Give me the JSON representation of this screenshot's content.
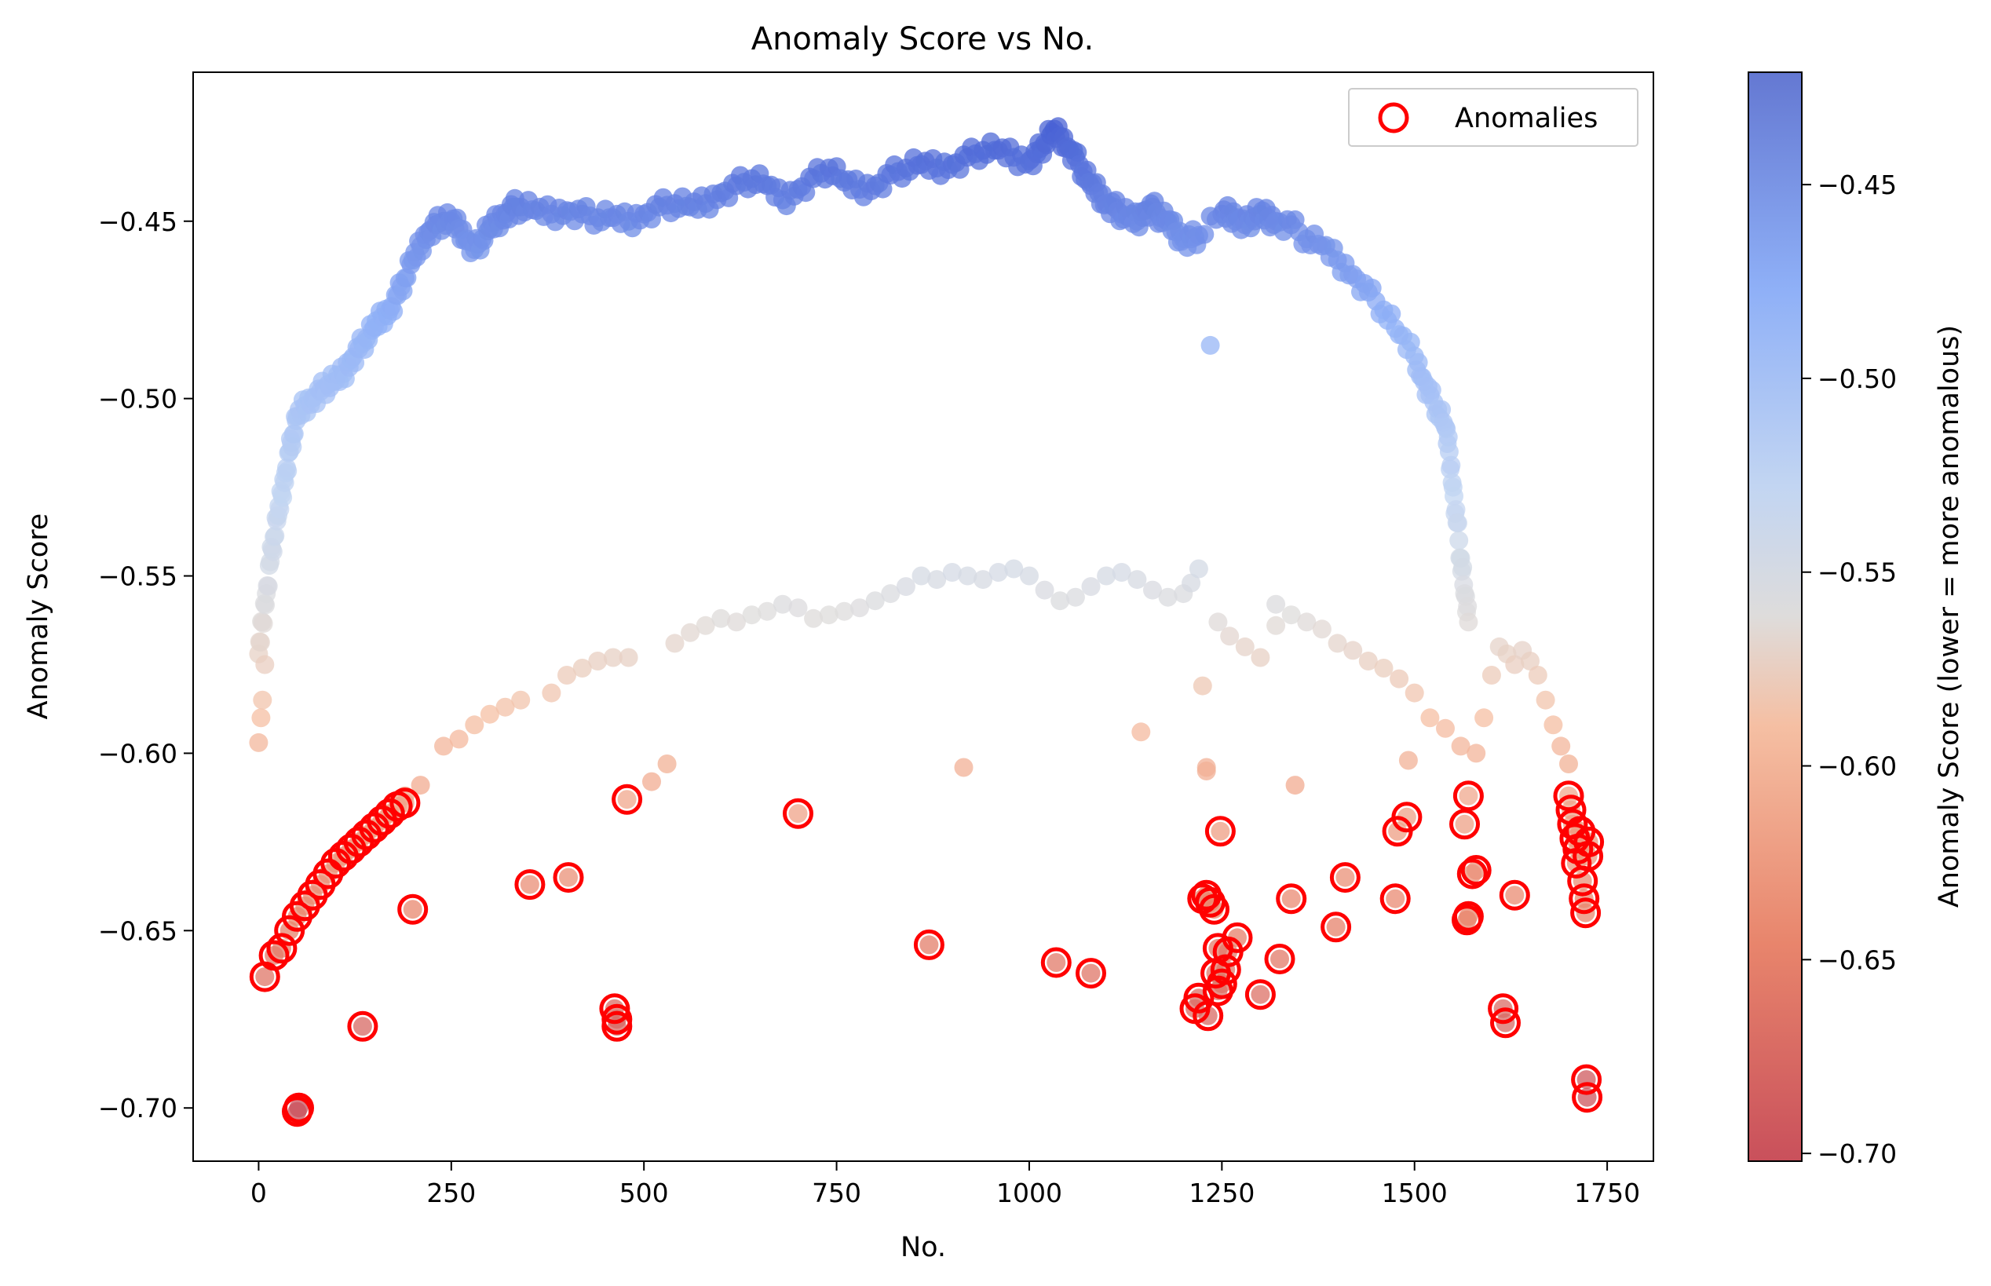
{
  "chart_data": {
    "type": "scatter",
    "title": "Anomaly Score vs No.",
    "xlabel": "No.",
    "ylabel": "Anomaly Score",
    "xlim": [
      -85,
      1810
    ],
    "ylim": [
      -0.715,
      -0.408
    ],
    "x_ticks": [
      0,
      250,
      500,
      750,
      1000,
      1250,
      1500,
      1750
    ],
    "y_ticks": [
      -0.45,
      -0.5,
      -0.55,
      -0.6,
      -0.65,
      -0.7
    ],
    "x_tick_labels": [
      "0",
      "250",
      "500",
      "750",
      "1000",
      "1250",
      "1500",
      "1750"
    ],
    "y_tick_labels": [
      "−0.45",
      "−0.50",
      "−0.55",
      "−0.60",
      "−0.65",
      "−0.70"
    ],
    "colormap": "coolwarm_r",
    "colorbar": {
      "label": "Anomaly Score (lower = more anomalous)",
      "range": [
        -0.702,
        -0.421
      ],
      "ticks": [
        -0.45,
        -0.5,
        -0.55,
        -0.6,
        -0.65,
        -0.7
      ],
      "tick_labels": [
        "−0.45",
        "−0.50",
        "−0.55",
        "−0.60",
        "−0.65",
        "−0.70"
      ]
    },
    "legend": {
      "entries": [
        "Anomalies"
      ],
      "placement": "top-right",
      "marker_color": "#ff0000"
    },
    "grid": false,
    "upper_band": [
      [
        0,
        -0.572
      ],
      [
        5,
        -0.563
      ],
      [
        10,
        -0.555
      ],
      [
        15,
        -0.546
      ],
      [
        20,
        -0.539
      ],
      [
        25,
        -0.533
      ],
      [
        30,
        -0.527
      ],
      [
        35,
        -0.521
      ],
      [
        40,
        -0.515
      ],
      [
        45,
        -0.51
      ],
      [
        50,
        -0.505
      ],
      [
        60,
        -0.502
      ],
      [
        70,
        -0.5
      ],
      [
        80,
        -0.498
      ],
      [
        90,
        -0.496
      ],
      [
        100,
        -0.495
      ],
      [
        110,
        -0.493
      ],
      [
        120,
        -0.489
      ],
      [
        130,
        -0.486
      ],
      [
        140,
        -0.483
      ],
      [
        150,
        -0.48
      ],
      [
        160,
        -0.477
      ],
      [
        170,
        -0.475
      ],
      [
        180,
        -0.471
      ],
      [
        190,
        -0.466
      ],
      [
        200,
        -0.461
      ],
      [
        210,
        -0.457
      ],
      [
        220,
        -0.453
      ],
      [
        230,
        -0.451
      ],
      [
        240,
        -0.45
      ],
      [
        250,
        -0.45
      ],
      [
        260,
        -0.452
      ],
      [
        270,
        -0.455
      ],
      [
        280,
        -0.458
      ],
      [
        290,
        -0.455
      ],
      [
        300,
        -0.452
      ],
      [
        310,
        -0.45
      ],
      [
        320,
        -0.448
      ],
      [
        330,
        -0.446
      ],
      [
        340,
        -0.446
      ],
      [
        360,
        -0.447
      ],
      [
        380,
        -0.448
      ],
      [
        400,
        -0.447
      ],
      [
        420,
        -0.448
      ],
      [
        440,
        -0.449
      ],
      [
        460,
        -0.449
      ],
      [
        480,
        -0.45
      ],
      [
        500,
        -0.448
      ],
      [
        520,
        -0.446
      ],
      [
        540,
        -0.445
      ],
      [
        560,
        -0.446
      ],
      [
        580,
        -0.445
      ],
      [
        600,
        -0.442
      ],
      [
        620,
        -0.44
      ],
      [
        640,
        -0.438
      ],
      [
        660,
        -0.44
      ],
      [
        680,
        -0.444
      ],
      [
        700,
        -0.441
      ],
      [
        720,
        -0.438
      ],
      [
        740,
        -0.435
      ],
      [
        760,
        -0.439
      ],
      [
        780,
        -0.441
      ],
      [
        800,
        -0.44
      ],
      [
        820,
        -0.437
      ],
      [
        840,
        -0.435
      ],
      [
        860,
        -0.434
      ],
      [
        880,
        -0.435
      ],
      [
        900,
        -0.434
      ],
      [
        920,
        -0.432
      ],
      [
        940,
        -0.43
      ],
      [
        960,
        -0.43
      ],
      [
        980,
        -0.432
      ],
      [
        1000,
        -0.433
      ],
      [
        1010,
        -0.431
      ],
      [
        1020,
        -0.428
      ],
      [
        1030,
        -0.425
      ],
      [
        1040,
        -0.426
      ],
      [
        1050,
        -0.429
      ],
      [
        1060,
        -0.432
      ],
      [
        1070,
        -0.436
      ],
      [
        1080,
        -0.44
      ],
      [
        1090,
        -0.442
      ],
      [
        1100,
        -0.445
      ],
      [
        1110,
        -0.446
      ],
      [
        1120,
        -0.448
      ],
      [
        1130,
        -0.449
      ],
      [
        1140,
        -0.45
      ],
      [
        1150,
        -0.447
      ],
      [
        1160,
        -0.446
      ],
      [
        1170,
        -0.449
      ],
      [
        1180,
        -0.45
      ],
      [
        1190,
        -0.453
      ],
      [
        1200,
        -0.455
      ],
      [
        1210,
        -0.455
      ],
      [
        1220,
        -0.454
      ],
      [
        1250,
        -0.448
      ],
      [
        1260,
        -0.448
      ],
      [
        1270,
        -0.449
      ],
      [
        1280,
        -0.451
      ],
      [
        1290,
        -0.449
      ],
      [
        1300,
        -0.448
      ],
      [
        1310,
        -0.449
      ],
      [
        1320,
        -0.45
      ],
      [
        1340,
        -0.451
      ],
      [
        1360,
        -0.455
      ],
      [
        1380,
        -0.457
      ],
      [
        1400,
        -0.461
      ],
      [
        1420,
        -0.465
      ],
      [
        1440,
        -0.47
      ],
      [
        1460,
        -0.475
      ],
      [
        1480,
        -0.482
      ],
      [
        1500,
        -0.488
      ],
      [
        1510,
        -0.494
      ],
      [
        1520,
        -0.499
      ],
      [
        1530,
        -0.503
      ],
      [
        1540,
        -0.508
      ],
      [
        1545,
        -0.515
      ],
      [
        1550,
        -0.525
      ],
      [
        1555,
        -0.535
      ],
      [
        1560,
        -0.545
      ],
      [
        1565,
        -0.555
      ],
      [
        1570,
        -0.563
      ]
    ],
    "middle_band": [
      [
        240,
        -0.598
      ],
      [
        260,
        -0.596
      ],
      [
        280,
        -0.592
      ],
      [
        300,
        -0.589
      ],
      [
        320,
        -0.587
      ],
      [
        340,
        -0.585
      ],
      [
        380,
        -0.583
      ],
      [
        400,
        -0.578
      ],
      [
        420,
        -0.576
      ],
      [
        440,
        -0.574
      ],
      [
        460,
        -0.573
      ],
      [
        480,
        -0.573
      ],
      [
        540,
        -0.569
      ],
      [
        560,
        -0.566
      ],
      [
        580,
        -0.564
      ],
      [
        600,
        -0.562
      ],
      [
        620,
        -0.563
      ],
      [
        640,
        -0.561
      ],
      [
        660,
        -0.56
      ],
      [
        680,
        -0.558
      ],
      [
        700,
        -0.559
      ],
      [
        720,
        -0.562
      ],
      [
        740,
        -0.561
      ],
      [
        760,
        -0.56
      ],
      [
        780,
        -0.559
      ],
      [
        800,
        -0.557
      ],
      [
        820,
        -0.555
      ],
      [
        840,
        -0.553
      ],
      [
        860,
        -0.55
      ],
      [
        880,
        -0.551
      ],
      [
        900,
        -0.549
      ],
      [
        920,
        -0.55
      ],
      [
        940,
        -0.551
      ],
      [
        960,
        -0.549
      ],
      [
        980,
        -0.548
      ],
      [
        1000,
        -0.55
      ],
      [
        1020,
        -0.554
      ],
      [
        1040,
        -0.557
      ],
      [
        1060,
        -0.556
      ],
      [
        1080,
        -0.553
      ],
      [
        1100,
        -0.55
      ],
      [
        1120,
        -0.549
      ],
      [
        1140,
        -0.551
      ],
      [
        1160,
        -0.554
      ],
      [
        1180,
        -0.556
      ],
      [
        1200,
        -0.555
      ],
      [
        1210,
        -0.552
      ],
      [
        1220,
        -0.548
      ],
      [
        1245,
        -0.563
      ],
      [
        1260,
        -0.567
      ],
      [
        1280,
        -0.57
      ],
      [
        1300,
        -0.573
      ],
      [
        1320,
        -0.558
      ],
      [
        1340,
        -0.561
      ],
      [
        1360,
        -0.563
      ],
      [
        1380,
        -0.565
      ],
      [
        1400,
        -0.569
      ],
      [
        1420,
        -0.571
      ],
      [
        1440,
        -0.574
      ],
      [
        1460,
        -0.576
      ],
      [
        1480,
        -0.579
      ],
      [
        1500,
        -0.583
      ],
      [
        1520,
        -0.59
      ],
      [
        1540,
        -0.593
      ],
      [
        1560,
        -0.598
      ],
      [
        1580,
        -0.6
      ],
      [
        1590,
        -0.59
      ],
      [
        1600,
        -0.578
      ],
      [
        1610,
        -0.57
      ],
      [
        1620,
        -0.572
      ],
      [
        1630,
        -0.575
      ],
      [
        1640,
        -0.571
      ],
      [
        1650,
        -0.574
      ],
      [
        1660,
        -0.578
      ],
      [
        1670,
        -0.585
      ],
      [
        1680,
        -0.592
      ],
      [
        1690,
        -0.598
      ],
      [
        1700,
        -0.603
      ],
      [
        0,
        -0.597
      ],
      [
        3,
        -0.59
      ],
      [
        5,
        -0.585
      ],
      [
        8,
        -0.575
      ],
      [
        170,
        -0.617
      ],
      [
        190,
        -0.612
      ],
      [
        210,
        -0.609
      ],
      [
        510,
        -0.608
      ],
      [
        530,
        -0.603
      ],
      [
        915,
        -0.604
      ],
      [
        1145,
        -0.594
      ],
      [
        1225,
        -0.581
      ],
      [
        1230,
        -0.605
      ],
      [
        1230,
        -0.604
      ],
      [
        1345,
        -0.609
      ],
      [
        1320,
        -0.564
      ],
      [
        1492,
        -0.602
      ],
      [
        1235,
        -0.485
      ]
    ],
    "anomalies": [
      [
        8,
        -0.663
      ],
      [
        20,
        -0.657
      ],
      [
        30,
        -0.655
      ],
      [
        40,
        -0.65
      ],
      [
        50,
        -0.646
      ],
      [
        60,
        -0.643
      ],
      [
        70,
        -0.64
      ],
      [
        80,
        -0.637
      ],
      [
        90,
        -0.634
      ],
      [
        100,
        -0.631
      ],
      [
        110,
        -0.629
      ],
      [
        120,
        -0.627
      ],
      [
        130,
        -0.625
      ],
      [
        140,
        -0.623
      ],
      [
        150,
        -0.621
      ],
      [
        160,
        -0.619
      ],
      [
        170,
        -0.617
      ],
      [
        180,
        -0.615
      ],
      [
        190,
        -0.614
      ],
      [
        50,
        -0.701
      ],
      [
        52,
        -0.7
      ],
      [
        135,
        -0.677
      ],
      [
        200,
        -0.644
      ],
      [
        352,
        -0.637
      ],
      [
        402,
        -0.635
      ],
      [
        462,
        -0.672
      ],
      [
        465,
        -0.675
      ],
      [
        465,
        -0.677
      ],
      [
        478,
        -0.613
      ],
      [
        700,
        -0.617
      ],
      [
        870,
        -0.654
      ],
      [
        1035,
        -0.659
      ],
      [
        1080,
        -0.662
      ],
      [
        1215,
        -0.672
      ],
      [
        1220,
        -0.669
      ],
      [
        1225,
        -0.641
      ],
      [
        1230,
        -0.64
      ],
      [
        1232,
        -0.674
      ],
      [
        1235,
        -0.642
      ],
      [
        1240,
        -0.644
      ],
      [
        1242,
        -0.662
      ],
      [
        1245,
        -0.655
      ],
      [
        1245,
        -0.667
      ],
      [
        1248,
        -0.622
      ],
      [
        1250,
        -0.665
      ],
      [
        1255,
        -0.661
      ],
      [
        1258,
        -0.656
      ],
      [
        1270,
        -0.652
      ],
      [
        1300,
        -0.668
      ],
      [
        1325,
        -0.658
      ],
      [
        1340,
        -0.641
      ],
      [
        1398,
        -0.649
      ],
      [
        1410,
        -0.635
      ],
      [
        1475,
        -0.641
      ],
      [
        1478,
        -0.622
      ],
      [
        1490,
        -0.618
      ],
      [
        1565,
        -0.62
      ],
      [
        1568,
        -0.647
      ],
      [
        1570,
        -0.646
      ],
      [
        1570,
        -0.612
      ],
      [
        1575,
        -0.634
      ],
      [
        1580,
        -0.633
      ],
      [
        1615,
        -0.672
      ],
      [
        1618,
        -0.676
      ],
      [
        1630,
        -0.64
      ],
      [
        1700,
        -0.612
      ],
      [
        1703,
        -0.616
      ],
      [
        1705,
        -0.62
      ],
      [
        1708,
        -0.624
      ],
      [
        1710,
        -0.631
      ],
      [
        1712,
        -0.627
      ],
      [
        1715,
        -0.622
      ],
      [
        1718,
        -0.636
      ],
      [
        1720,
        -0.641
      ],
      [
        1722,
        -0.645
      ],
      [
        1723,
        -0.692
      ],
      [
        1724,
        -0.697
      ],
      [
        1725,
        -0.629
      ],
      [
        1726,
        -0.625
      ]
    ]
  }
}
